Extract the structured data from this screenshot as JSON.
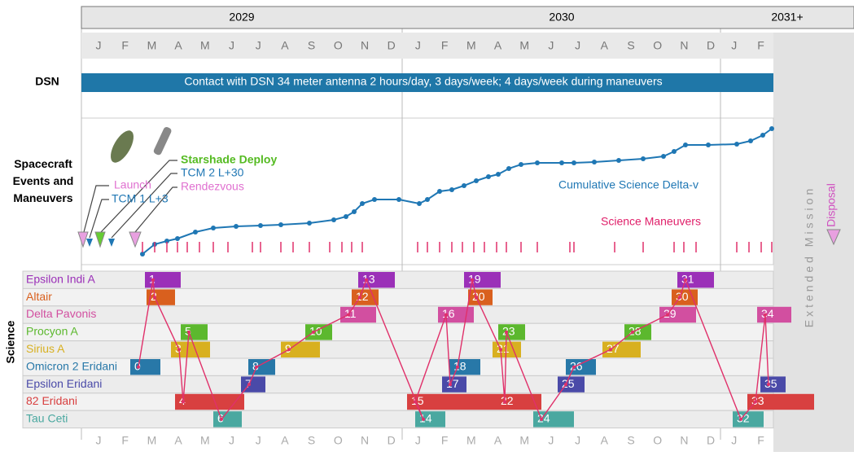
{
  "header": {
    "years": [
      "2029",
      "2030",
      "2031+"
    ],
    "months": [
      "J",
      "F",
      "M",
      "A",
      "M",
      "J",
      "J",
      "A",
      "S",
      "O",
      "N",
      "D",
      "J",
      "F",
      "M",
      "A",
      "M",
      "J",
      "J",
      "A",
      "S",
      "O",
      "N",
      "D",
      "J",
      "F"
    ]
  },
  "dsn": {
    "label": "DSN",
    "text": "Contact with DSN 34 meter antenna 2 hours/day, 3 days/week; 4 days/week during maneuvers"
  },
  "events": {
    "label": "Spacecraft Events and Maneuvers",
    "launch": "Launch",
    "tcm1": "TCM 1  L+3",
    "starshade": "Starshade Deploy",
    "tcm2": "TCM 2  L+30",
    "rendezvous": "Rendezvous",
    "delta_v": "Cumulative Science Delta-v",
    "maneuvers": "Science Maneuvers",
    "extended": "Extended Mission",
    "disposal": "Disposal"
  },
  "science": {
    "label": "Science",
    "targets": [
      "Epsilon Indi A",
      "Altair",
      "Delta Pavonis",
      "Procyon A",
      "Sirius A",
      "Omicron 2 Eridani",
      "Epsilon Eridani",
      "82 Eridani",
      "Tau Ceti"
    ],
    "blocks": [
      "0",
      "1",
      "2",
      "3",
      "4",
      "5",
      "6",
      "7",
      "8",
      "9",
      "10",
      "11",
      "12",
      "13",
      "14",
      "15",
      "16",
      "17",
      "18",
      "19",
      "20",
      "21",
      "22",
      "23",
      "24",
      "25",
      "26",
      "27",
      "28",
      "29",
      "30",
      "31",
      "32",
      "33",
      "34",
      "35"
    ]
  }
}
